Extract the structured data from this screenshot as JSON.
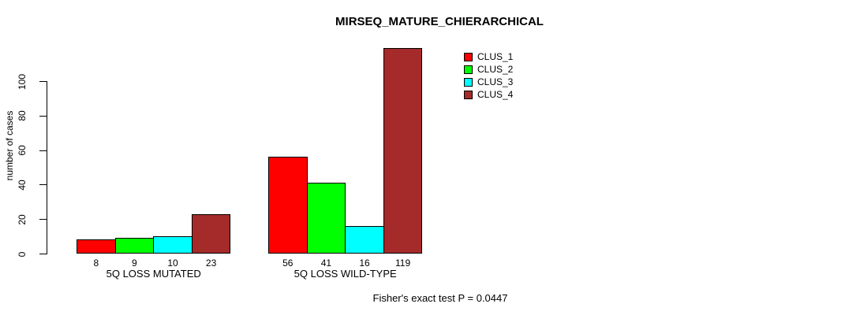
{
  "chart_data": {
    "type": "bar",
    "title": "MIRSEQ_MATURE_CHIERARCHICAL",
    "ylabel": "number of cases",
    "xlabel": "",
    "yticks": [
      0,
      20,
      40,
      60,
      80,
      100
    ],
    "ylim": [
      0,
      119
    ],
    "grid": false,
    "legend_position": "top-right-inside",
    "categories": [
      "5Q LOSS MUTATED",
      "5Q LOSS WILD-TYPE"
    ],
    "series": [
      {
        "name": "CLUS_1",
        "color": "#FF0000",
        "values": [
          8,
          56
        ]
      },
      {
        "name": "CLUS_2",
        "color": "#00FF00",
        "values": [
          9,
          41
        ]
      },
      {
        "name": "CLUS_3",
        "color": "#00FFFF",
        "values": [
          10,
          16
        ]
      },
      {
        "name": "CLUS_4",
        "color": "#A52A2A",
        "values": [
          23,
          119
        ]
      }
    ],
    "bar_value_labels": true,
    "annotation": "Fisher's exact test P = 0.0447"
  },
  "colors": {
    "background": "#FFFFFF",
    "axis": "#000000",
    "text": "#000000"
  }
}
